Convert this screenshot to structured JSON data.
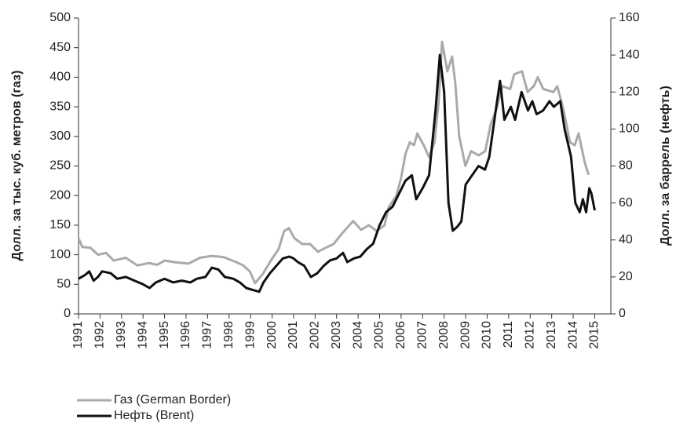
{
  "chart_data": {
    "type": "line",
    "xlim": [
      1991,
      2015.75
    ],
    "xticks": [
      1991,
      1992,
      1993,
      1994,
      1995,
      1996,
      1997,
      1998,
      1999,
      2000,
      2001,
      2002,
      2003,
      2004,
      2005,
      2006,
      2007,
      2008,
      2009,
      2010,
      2011,
      2012,
      2013,
      2014,
      2015
    ],
    "ylim": [
      0,
      500
    ],
    "yticks": [
      0,
      50,
      100,
      150,
      200,
      250,
      300,
      350,
      400,
      450,
      500
    ],
    "y2lim": [
      0,
      160
    ],
    "y2ticks": [
      0,
      20,
      40,
      60,
      80,
      100,
      120,
      140,
      160
    ],
    "ylabel": "Долл. за тыс. куб. метров (газ)",
    "y2label": "Долл. за баррель (нефть)",
    "legend": "bottom-left",
    "series": [
      {
        "name": "Газ (German Border)",
        "color": "#aaaaaa",
        "axis": "y",
        "x": [
          1991,
          1991.18,
          1991.55,
          1991.91,
          1992.28,
          1992.64,
          1993.19,
          1993.74,
          1994.28,
          1994.65,
          1995.01,
          1995.56,
          1996.11,
          1996.66,
          1997.2,
          1997.75,
          1998.3,
          1998.66,
          1998.96,
          1999.21,
          1999.58,
          1999.94,
          2000.31,
          2000.56,
          2000.78,
          2001.04,
          2001.4,
          2001.77,
          2002.13,
          2002.5,
          2002.86,
          2003.23,
          2003.77,
          2004.14,
          2004.5,
          2004.87,
          2005.23,
          2005.42,
          2005.78,
          2006.0,
          2006.2,
          2006.4,
          2006.6,
          2006.75,
          2007.05,
          2007.3,
          2007.55,
          2007.75,
          2007.9,
          2008.15,
          2008.37,
          2008.52,
          2008.7,
          2008.99,
          2009.25,
          2009.61,
          2009.91,
          2010.16,
          2010.42,
          2010.71,
          2011.07,
          2011.26,
          2011.62,
          2011.88,
          2012.17,
          2012.35,
          2012.61,
          2013.08,
          2013.26,
          2013.55,
          2013.85,
          2014.07,
          2014.25,
          2014.54,
          2014.72
        ],
        "values": [
          128,
          113,
          112,
          100,
          103,
          90,
          95,
          82,
          86,
          83,
          90,
          87,
          85,
          95,
          98,
          96,
          88,
          82,
          72,
          52,
          68,
          90,
          110,
          140,
          145,
          128,
          118,
          118,
          105,
          112,
          118,
          135,
          157,
          142,
          150,
          140,
          150,
          180,
          200,
          230,
          270,
          290,
          285,
          305,
          285,
          265,
          290,
          360,
          460,
          410,
          435,
          390,
          300,
          250,
          275,
          268,
          275,
          320,
          345,
          385,
          380,
          405,
          410,
          375,
          385,
          400,
          380,
          375,
          385,
          345,
          290,
          285,
          305,
          255,
          235
        ]
      },
      {
        "name": "Нефть (Brent)",
        "color": "#111111",
        "axis": "y2",
        "x": [
          1991,
          1991.3,
          1991.5,
          1991.7,
          1991.9,
          1992.1,
          1992.5,
          1992.8,
          1993.2,
          1993.6,
          1994,
          1994.3,
          1994.6,
          1995,
          1995.4,
          1995.8,
          1996.2,
          1996.5,
          1996.9,
          1997.2,
          1997.5,
          1997.8,
          1998.2,
          1998.5,
          1998.8,
          1999.1,
          1999.4,
          1999.6,
          1999.9,
          2000.2,
          2000.5,
          2000.8,
          2001,
          2001.2,
          2001.5,
          2001.8,
          2002.1,
          2002.4,
          2002.7,
          2003,
          2003.3,
          2003.5,
          2003.8,
          2004.1,
          2004.4,
          2004.7,
          2005,
          2005.3,
          2005.6,
          2005.9,
          2006.2,
          2006.5,
          2006.7,
          2007,
          2007.3,
          2007.6,
          2007.8,
          2008,
          2008.2,
          2008.4,
          2008.6,
          2008.8,
          2009,
          2009.3,
          2009.6,
          2009.9,
          2010.1,
          2010.4,
          2010.6,
          2010.8,
          2011.1,
          2011.3,
          2011.6,
          2011.9,
          2012.1,
          2012.3,
          2012.6,
          2012.9,
          2013.1,
          2013.4,
          2013.6,
          2013.9,
          2014.1,
          2014.3,
          2014.45,
          2014.6,
          2014.75,
          2014.85,
          2015
        ],
        "values": [
          19,
          21,
          23,
          18,
          20,
          23,
          22,
          19,
          20,
          18,
          16,
          14,
          17,
          19,
          17,
          18,
          17,
          19,
          20,
          25,
          24,
          20,
          19,
          17,
          14,
          13,
          12,
          17,
          22,
          26,
          30,
          31,
          30,
          28,
          26,
          20,
          22,
          26,
          29,
          30,
          33,
          28,
          30,
          31,
          35,
          38,
          48,
          55,
          58,
          65,
          72,
          75,
          62,
          68,
          75,
          110,
          140,
          120,
          60,
          45,
          47,
          50,
          70,
          75,
          80,
          78,
          85,
          110,
          126,
          105,
          112,
          105,
          120,
          110,
          115,
          108,
          110,
          115,
          112,
          115,
          100,
          85,
          60,
          55,
          62,
          55,
          68,
          65,
          56
        ]
      }
    ]
  }
}
